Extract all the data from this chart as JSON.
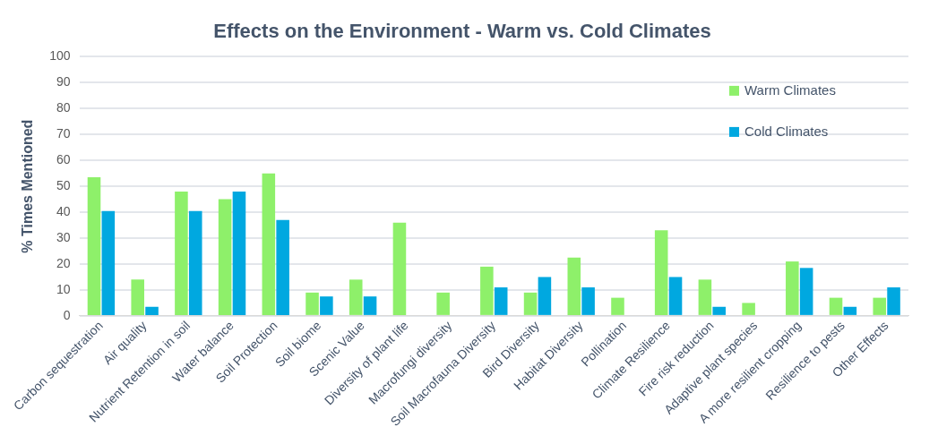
{
  "chart_data": {
    "type": "bar",
    "title": "Effects on the Environment - Warm vs. Cold Climates",
    "ylabel": "% Times Mentioned",
    "categories": [
      "Carbon sequestration",
      "Air quality",
      "Nutrient Retention in soil",
      "Water balance",
      "Soil Protection",
      "Soil biome",
      "Scenic Value",
      "Diversity of plant life",
      "Macrofungi diversity",
      "Soil Macrofauna Diversity",
      "Bird Diversity",
      "Habitat Diversity",
      "Pollination",
      "Climate Resilience",
      "Fire risk reduction",
      "Adaptive plant species",
      "A more resilient cropping",
      "Resilience to pests",
      "Other Effects"
    ],
    "series": [
      {
        "name": "Warm Climates",
        "color": "#8ef06a",
        "values": [
          53.5,
          14,
          48,
          45,
          55,
          9,
          14,
          36,
          9,
          19,
          9,
          22.5,
          7,
          33,
          14,
          5,
          21,
          7,
          7
        ]
      },
      {
        "name": "Cold Climates",
        "color": "#00a8e0",
        "values": [
          40.5,
          3.5,
          40.5,
          48,
          37,
          7.5,
          7.5,
          0,
          0,
          11,
          15,
          11,
          0,
          15,
          3.5,
          0,
          18.5,
          3.5,
          11
        ]
      }
    ],
    "ylim": [
      0,
      100
    ],
    "yticks": [
      0,
      10,
      20,
      30,
      40,
      50,
      60,
      70,
      80,
      90,
      100
    ],
    "grid": "y",
    "legend": "top right"
  }
}
